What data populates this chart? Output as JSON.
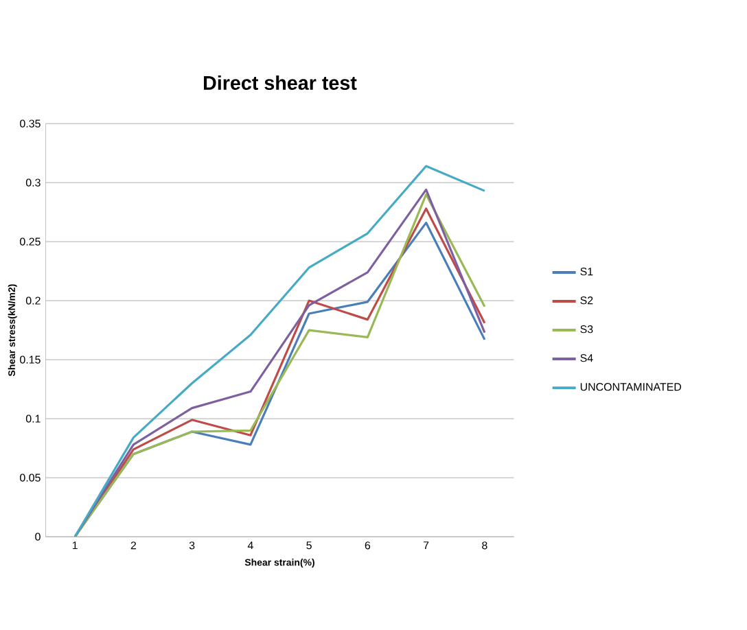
{
  "chart_data": {
    "type": "line",
    "title": "Direct shear test",
    "xlabel": "Shear strain(%)",
    "ylabel": "Shear stress(kN/m2)",
    "categories": [
      "1",
      "2",
      "3",
      "4",
      "5",
      "6",
      "7",
      "8"
    ],
    "ylim": [
      0,
      0.35
    ],
    "yticks": [
      0,
      0.05,
      0.1,
      0.15,
      0.2,
      0.25,
      0.3,
      0.35
    ],
    "grid": "y",
    "legend": "right",
    "marker": "none",
    "line_style": "solid",
    "series": [
      {
        "name": "S1",
        "color": "#4a7ebb",
        "values": [
          0,
          0.07,
          0.089,
          0.078,
          0.189,
          0.199,
          0.266,
          0.167
        ]
      },
      {
        "name": "S2",
        "color": "#be4b48",
        "values": [
          0,
          0.074,
          0.099,
          0.086,
          0.2,
          0.184,
          0.278,
          0.181
        ]
      },
      {
        "name": "S3",
        "color": "#98b954",
        "values": [
          0,
          0.07,
          0.089,
          0.09,
          0.175,
          0.169,
          0.29,
          0.195
        ]
      },
      {
        "name": "S4",
        "color": "#7d60a0",
        "values": [
          0,
          0.078,
          0.109,
          0.123,
          0.196,
          0.224,
          0.294,
          0.173
        ]
      },
      {
        "name": "UNCONTAMINATED",
        "color": "#46aac5",
        "values": [
          0,
          0.084,
          0.13,
          0.171,
          0.228,
          0.257,
          0.314,
          0.293
        ]
      }
    ]
  }
}
